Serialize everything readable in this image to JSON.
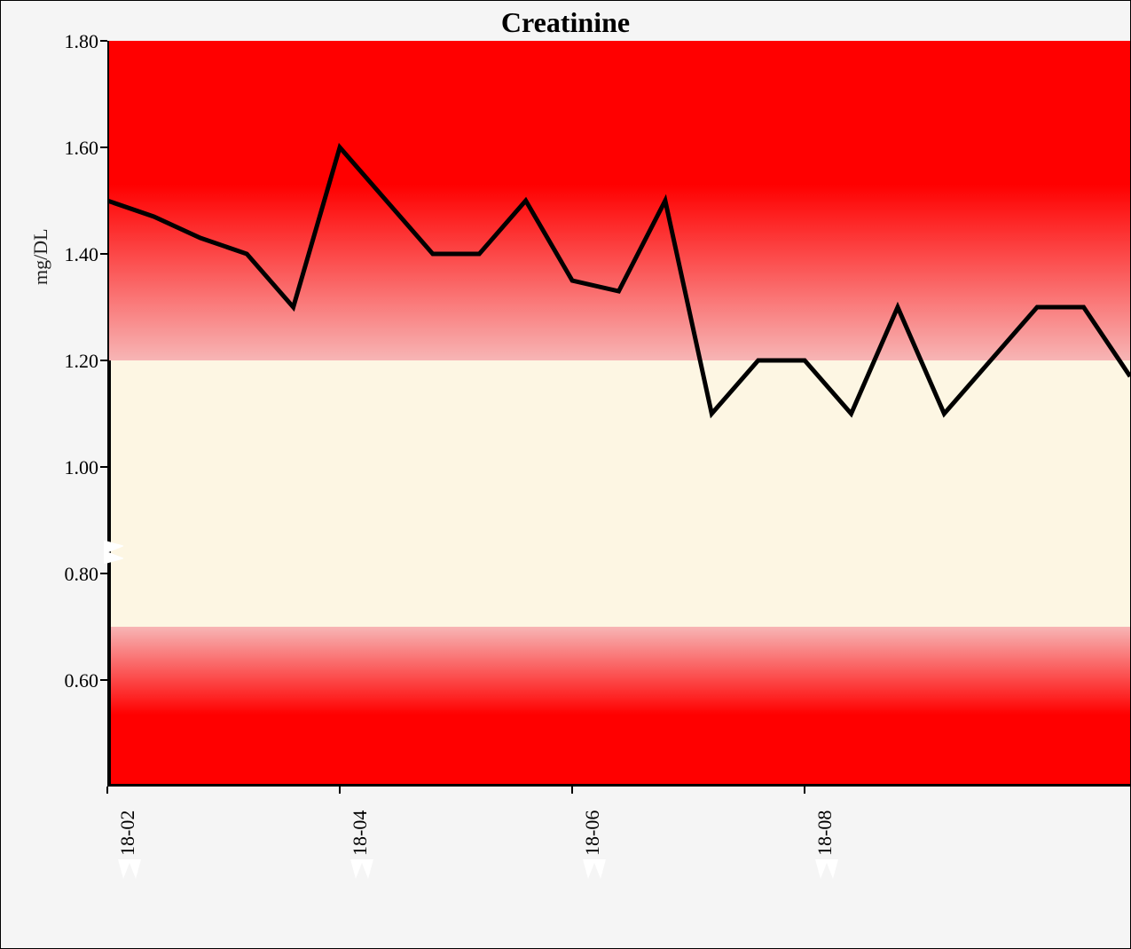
{
  "chart": {
    "type": "line",
    "title": "Creatinine",
    "title_fontsize": 32,
    "title_fontweight": "bold",
    "ylabel": "mg/DL",
    "ylabel_fontsize": 22,
    "outer_background": "#f5f5f5",
    "normal_band_color": "#fdf6e3",
    "gradient_red_outer": "#ff0000",
    "gradient_red_mid": "#f7b5b5",
    "line_color": "#000000",
    "line_width": 5,
    "axis_color": "#000000",
    "axis_width": 4,
    "border_color": "#000000",
    "y": {
      "min": 0.4,
      "max": 1.8,
      "ticks": [
        0.6,
        0.8,
        1.0,
        1.2,
        1.4,
        1.6,
        1.8
      ],
      "tick_labels": [
        "0.60",
        "0.80",
        "1.00",
        "1.20",
        "1.40",
        "1.60",
        "1.80"
      ],
      "normal_low": 0.7,
      "normal_high": 1.2
    },
    "x": {
      "min": 0,
      "max": 22,
      "ticks": [
        0,
        4,
        8,
        12,
        16
      ],
      "tick_labels": [
        "18-02",
        "18-04",
        "18-06",
        "18-08"
      ],
      "tick_label_x_indices": [
        0,
        5,
        10,
        15
      ]
    },
    "series": {
      "x": [
        0,
        1,
        2,
        3,
        4,
        5,
        6,
        7,
        8,
        9,
        10,
        11,
        12,
        13,
        14,
        15,
        16,
        17,
        18,
        19,
        20,
        21,
        22
      ],
      "y": [
        1.5,
        1.47,
        1.43,
        1.4,
        1.3,
        1.6,
        1.5,
        1.4,
        1.4,
        1.5,
        1.35,
        1.33,
        1.5,
        1.1,
        1.2,
        1.2,
        1.1,
        1.3,
        1.1,
        1.2,
        1.3,
        1.3,
        1.17
      ]
    },
    "tear_marks": true
  }
}
